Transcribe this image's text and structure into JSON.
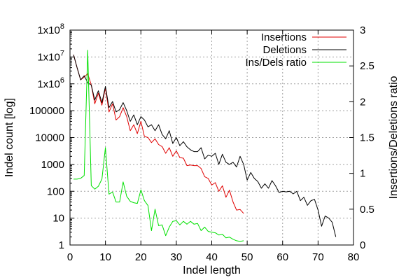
{
  "chart_data": {
    "type": "line",
    "xlabel": "Indel length",
    "ylabel": "Indel count [log]",
    "y2label": "Insertions/Deletions ratio",
    "xlim": [
      0,
      80
    ],
    "ylim": [
      1,
      100000000
    ],
    "y2lim": [
      0,
      3
    ],
    "yscale": "log",
    "grid": true,
    "legend_position": "top-right",
    "x_ticks": [
      "0",
      "10",
      "20",
      "30",
      "40",
      "50",
      "60",
      "70",
      "80"
    ],
    "y_ticks": [
      "1",
      "10",
      "100",
      "1000",
      "10000",
      "100000",
      "1x10",
      "1x10",
      "1x10"
    ],
    "y_ticks_exp": [
      "",
      "",
      "",
      "",
      "",
      "",
      "6",
      "7",
      "8"
    ],
    "y2_ticks": [
      "0",
      "0.5",
      "1",
      "1.5",
      "2",
      "2.5",
      "3"
    ],
    "series": [
      {
        "name": "Insertions",
        "axis": "left",
        "color": "#e00000",
        "x": [
          1,
          2,
          3,
          4,
          5,
          6,
          7,
          8,
          9,
          10,
          11,
          12,
          13,
          14,
          15,
          16,
          17,
          18,
          19,
          20,
          21,
          22,
          23,
          24,
          25,
          26,
          27,
          28,
          29,
          30,
          31,
          32,
          33,
          34,
          35,
          36,
          37,
          38,
          39,
          40,
          41,
          42,
          43,
          44,
          45,
          46,
          47,
          48,
          49
        ],
        "values": [
          12000000,
          4000000,
          1400000,
          1800000,
          2400000,
          900000,
          180000,
          450000,
          160000,
          700000,
          90000,
          180000,
          45000,
          60000,
          130000,
          60000,
          18000,
          30000,
          14000,
          40000,
          11000,
          10000,
          6500,
          9000,
          5500,
          4600,
          2600,
          4200,
          2000,
          3200,
          1800,
          1700,
          900,
          950,
          900,
          900,
          700,
          350,
          300,
          170,
          210,
          100,
          160,
          60,
          110,
          40,
          20,
          21,
          15
        ]
      },
      {
        "name": "Deletions",
        "axis": "left",
        "color": "#000000",
        "x": [
          1,
          2,
          3,
          4,
          5,
          6,
          7,
          8,
          9,
          10,
          11,
          12,
          13,
          14,
          15,
          16,
          17,
          18,
          19,
          20,
          21,
          22,
          23,
          24,
          25,
          26,
          27,
          28,
          29,
          30,
          31,
          32,
          33,
          34,
          35,
          36,
          37,
          38,
          39,
          40,
          41,
          42,
          43,
          44,
          45,
          46,
          47,
          48,
          49,
          50,
          51,
          52,
          53,
          54,
          55,
          56,
          57,
          58,
          59,
          60,
          61,
          62,
          63,
          64,
          65,
          66,
          67,
          68,
          69,
          70,
          71,
          72,
          73,
          74,
          75
        ],
        "values": [
          12000000,
          4000000,
          1400000,
          2000000,
          1100000,
          900000,
          250000,
          550000,
          200000,
          800000,
          130000,
          220000,
          90000,
          110000,
          200000,
          100000,
          40000,
          70000,
          30000,
          60000,
          45000,
          25000,
          30000,
          18000,
          30000,
          13000,
          9000,
          18000,
          6000,
          10000,
          5000,
          7000,
          4500,
          3500,
          3000,
          3000,
          4200,
          1600,
          2200,
          2000,
          2600,
          1000,
          2400,
          1200,
          1000,
          1200,
          800,
          2000,
          1000,
          260,
          500,
          300,
          230,
          130,
          190,
          130,
          250,
          160,
          90,
          100,
          95,
          100,
          80,
          100,
          45,
          60,
          30,
          45,
          50,
          20,
          5,
          12,
          10,
          7,
          2
        ]
      },
      {
        "name": "Ins/Dels ratio",
        "axis": "right",
        "color": "#00e000",
        "x": [
          1,
          2,
          3,
          4,
          5,
          6,
          7,
          8,
          9,
          10,
          11,
          12,
          13,
          14,
          15,
          16,
          17,
          18,
          19,
          20,
          21,
          22,
          23,
          24,
          25,
          26,
          27,
          28,
          29,
          30,
          31,
          32,
          33,
          34,
          35,
          36,
          37,
          38,
          39,
          40,
          41,
          42,
          43,
          44,
          45,
          46,
          47,
          48,
          49
        ],
        "values": [
          0.92,
          0.92,
          0.93,
          0.97,
          2.72,
          0.83,
          0.78,
          0.82,
          0.92,
          1.36,
          0.71,
          0.74,
          0.6,
          0.6,
          0.88,
          0.68,
          0.61,
          0.59,
          0.58,
          0.77,
          0.62,
          0.55,
          0.2,
          0.5,
          0.27,
          0.28,
          0.13,
          0.25,
          0.33,
          0.34,
          0.28,
          0.33,
          0.29,
          0.33,
          0.29,
          0.3,
          0.2,
          0.25,
          0.19,
          0.18,
          0.17,
          0.14,
          0.15,
          0.1,
          0.11,
          0.08,
          0.06,
          0.05,
          0.06
        ]
      }
    ]
  }
}
